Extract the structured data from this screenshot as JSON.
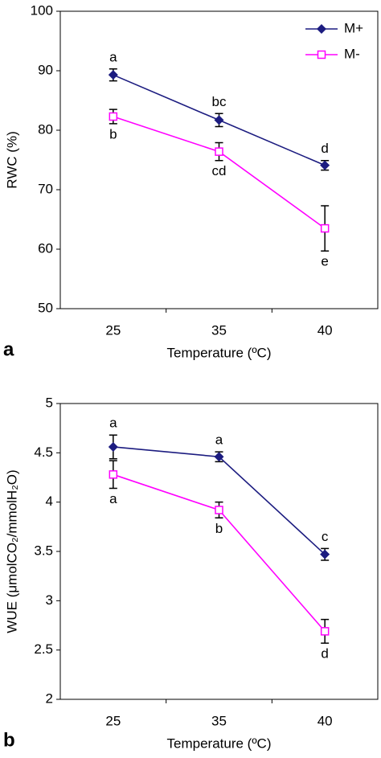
{
  "chart_data": [
    {
      "type": "line",
      "panel_label": "a",
      "x_label": "Temperature (ºC)",
      "y_label": "RWC (%)",
      "categories": [
        "25",
        "35",
        "40"
      ],
      "ylim": [
        50,
        100
      ],
      "yticks": [
        50,
        60,
        70,
        80,
        90,
        100
      ],
      "legend": "upper right",
      "series": [
        {
          "name": "M+",
          "color": "#1c1c80",
          "marker": "diamond",
          "label_position": "above",
          "values": [
            89.3,
            81.7,
            74.1
          ],
          "errors": [
            1.0,
            1.1,
            0.8
          ],
          "letters": [
            "a",
            "bc",
            "d"
          ]
        },
        {
          "name": "M-",
          "color": "#ff00ff",
          "marker": "square",
          "label_position": "below",
          "values": [
            82.3,
            76.4,
            63.5
          ],
          "errors": [
            1.2,
            1.5,
            3.8
          ],
          "letters": [
            "b",
            "cd",
            "e"
          ]
        }
      ]
    },
    {
      "type": "line",
      "panel_label": "b",
      "x_label": "Temperature (ºC)",
      "y_label": "WUE (μmolCO₂/mmolH₂O)",
      "categories": [
        "25",
        "35",
        "40"
      ],
      "ylim": [
        2,
        5
      ],
      "yticks": [
        2,
        2.5,
        3,
        3.5,
        4,
        4.5,
        5
      ],
      "series": [
        {
          "color": "#1c1c80",
          "marker": "diamond",
          "label_position": "above",
          "values": [
            4.56,
            4.46,
            3.47
          ],
          "errors": [
            0.12,
            0.05,
            0.06
          ],
          "letters": [
            "a",
            "a",
            "c"
          ]
        },
        {
          "color": "#ff00ff",
          "marker": "square",
          "label_position": "below",
          "values": [
            4.28,
            3.92,
            2.69
          ],
          "errors": [
            0.14,
            0.08,
            0.12
          ],
          "letters": [
            "a",
            "b",
            "d"
          ]
        }
      ]
    }
  ]
}
